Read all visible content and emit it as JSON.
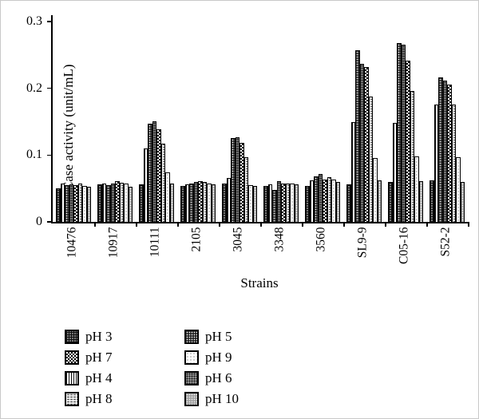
{
  "figure": {
    "background": "#ffffff",
    "ink_color": "#000000"
  },
  "chart_data": {
    "type": "bar",
    "title": "",
    "xlabel": "Strains",
    "ylabel": "CMCase activity (unit/mL)",
    "ylim": [
      0,
      0.3
    ],
    "yticks": [
      "0",
      "0.1",
      "0.2",
      "0.3"
    ],
    "grid": false,
    "legend_position": "bottom-left",
    "categories": [
      "10476",
      "10917",
      "10111",
      "2105",
      "3045",
      "3348",
      "3560",
      "SL9-9",
      "C05-16",
      "S52-2"
    ],
    "series": [
      {
        "name": "pH 3",
        "pattern": "ph3",
        "values": [
          0.05,
          0.056,
          0.056,
          0.054,
          0.057,
          0.054,
          0.054,
          0.056,
          0.06,
          0.062
        ]
      },
      {
        "name": "pH 4",
        "pattern": "ph4",
        "values": [
          0.057,
          0.057,
          0.11,
          0.056,
          0.066,
          0.056,
          0.062,
          0.15,
          0.148,
          0.176
        ]
      },
      {
        "name": "pH 5",
        "pattern": "ph5",
        "values": [
          0.055,
          0.055,
          0.147,
          0.057,
          0.126,
          0.048,
          0.068,
          0.257,
          0.268,
          0.216
        ]
      },
      {
        "name": "pH 6",
        "pattern": "ph6",
        "values": [
          0.056,
          0.057,
          0.151,
          0.06,
          0.127,
          0.061,
          0.072,
          0.237,
          0.265,
          0.212
        ]
      },
      {
        "name": "pH 7",
        "pattern": "ph7",
        "values": [
          0.055,
          0.061,
          0.139,
          0.061,
          0.118,
          0.058,
          0.064,
          0.232,
          0.241,
          0.206
        ]
      },
      {
        "name": "pH 8",
        "pattern": "ph8",
        "values": [
          0.057,
          0.059,
          0.117,
          0.06,
          0.097,
          0.057,
          0.067,
          0.188,
          0.196,
          0.176
        ]
      },
      {
        "name": "pH 9",
        "pattern": "ph9",
        "values": [
          0.054,
          0.057,
          0.074,
          0.057,
          0.055,
          0.058,
          0.063,
          0.096,
          0.098,
          0.097
        ]
      },
      {
        "name": "pH 10",
        "pattern": "ph10",
        "values": [
          0.053,
          0.053,
          0.058,
          0.056,
          0.054,
          0.056,
          0.06,
          0.062,
          0.061,
          0.06
        ]
      }
    ],
    "legend_columns": [
      [
        "pH 3",
        "pH 7",
        "pH 4",
        "pH 8"
      ],
      [
        "pH 5",
        "pH 9",
        "pH 6",
        "pH 10"
      ]
    ]
  }
}
